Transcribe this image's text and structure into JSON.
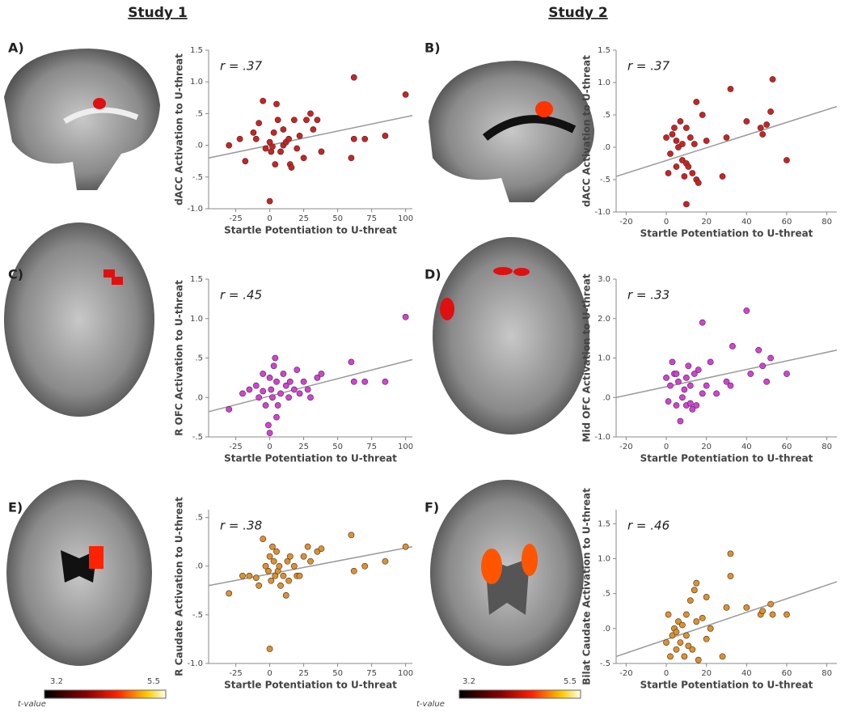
{
  "headers": [
    "Study 1",
    "Study 2"
  ],
  "colorbars": [
    {
      "min": 3.2,
      "max": 5.5,
      "label": "t-value"
    },
    {
      "min": 3.2,
      "max": 5.5,
      "label": "t-value"
    }
  ],
  "chart_data": [
    {
      "type": "scatter",
      "panel": "A)",
      "annotation": "r = .37",
      "xlabel": "Startle Potentiation to U-threat",
      "ylabel": "dACC Activation to U-threat",
      "color": "#cc2222",
      "xlim": [
        -45,
        105
      ],
      "xticks": [
        -25,
        0,
        25,
        50,
        75,
        100
      ],
      "ylim": [
        -1.0,
        1.5
      ],
      "yticks": [
        {
          "value": -1.0,
          "label": "-1.0"
        },
        {
          "value": -0.5,
          "label": "-.5"
        },
        {
          "value": 0,
          "label": ".0"
        },
        {
          "value": 0.5,
          "label": ".5"
        },
        {
          "value": 1.0,
          "label": "1.0"
        },
        {
          "value": 1.5,
          "label": "1.5"
        }
      ],
      "x": [
        -30,
        -22,
        -18,
        -12,
        -10,
        -5,
        -3,
        0,
        1,
        2,
        3,
        4,
        5,
        6,
        8,
        10,
        12,
        14,
        15,
        16,
        18,
        20,
        22,
        25,
        27,
        30,
        32,
        35,
        38,
        0,
        62,
        60,
        62,
        70,
        85,
        100,
        -8,
        10
      ],
      "values": [
        0.0,
        0.1,
        -0.25,
        0.2,
        0.1,
        0.7,
        -0.05,
        0.05,
        -0.1,
        -0.02,
        0.2,
        -0.3,
        0.65,
        0.4,
        -0.1,
        0.0,
        0.05,
        0.1,
        -0.3,
        -0.35,
        0.4,
        -0.05,
        0.15,
        -0.2,
        0.4,
        0.5,
        0.25,
        0.4,
        -0.1,
        -0.88,
        1.07,
        -0.2,
        0.1,
        0.1,
        0.15,
        0.8,
        0.35,
        0.25
      ],
      "trend_line": {
        "x": [
          -45,
          105
        ],
        "values": [
          -0.2,
          0.47
        ]
      }
    },
    {
      "type": "scatter",
      "panel": "B)",
      "annotation": "r = .37",
      "xlabel": "Startle Potentiation to U-threat",
      "ylabel": "dACC Activation to U-threat",
      "color": "#cc2222",
      "xlim": [
        -25,
        85
      ],
      "xticks": [
        -20,
        0,
        20,
        40,
        60,
        80
      ],
      "ylim": [
        -1.0,
        1.5
      ],
      "yticks": [
        {
          "value": -1.0,
          "label": "-1.0"
        },
        {
          "value": -0.5,
          "label": "-.5"
        },
        {
          "value": 0,
          "label": ".0"
        },
        {
          "value": 0.5,
          "label": ".5"
        },
        {
          "value": 1.0,
          "label": "1.0"
        },
        {
          "value": 1.5,
          "label": "1.5"
        }
      ],
      "x": [
        0,
        1,
        2,
        3,
        4,
        5,
        6,
        7,
        8,
        9,
        10,
        10,
        11,
        12,
        13,
        14,
        15,
        15,
        16,
        18,
        20,
        10,
        28,
        30,
        32,
        40,
        47,
        48,
        50,
        52,
        53,
        60,
        5,
        8
      ],
      "values": [
        0.15,
        -0.4,
        -0.1,
        0.2,
        0.3,
        -0.3,
        0.0,
        0.4,
        -0.2,
        -0.45,
        -0.25,
        0.3,
        -0.3,
        0.15,
        -0.4,
        0.05,
        -0.5,
        0.7,
        -0.55,
        0.5,
        0.1,
        -0.88,
        -0.45,
        0.15,
        0.9,
        0.4,
        0.3,
        0.2,
        0.35,
        0.55,
        1.05,
        -0.2,
        0.1,
        0.05
      ],
      "trend_line": {
        "x": [
          -25,
          85
        ],
        "values": [
          -0.45,
          0.63
        ]
      }
    },
    {
      "type": "scatter",
      "panel": "C)",
      "annotation": "r = .45",
      "xlabel": "Startle Potentiation to U-threat",
      "ylabel": "R OFC Activation to U-threat",
      "color": "#d63fd6",
      "xlim": [
        -45,
        105
      ],
      "xticks": [
        -25,
        0,
        25,
        50,
        75,
        100
      ],
      "ylim": [
        -0.5,
        1.5
      ],
      "yticks": [
        {
          "value": -0.5,
          "label": "-.5"
        },
        {
          "value": 0,
          "label": ".0"
        },
        {
          "value": 0.5,
          "label": ".5"
        },
        {
          "value": 1.0,
          "label": "1.0"
        },
        {
          "value": 1.5,
          "label": "1.5"
        }
      ],
      "x": [
        -30,
        -20,
        -15,
        -10,
        -8,
        -5,
        -3,
        -1,
        0,
        0,
        1,
        2,
        3,
        4,
        5,
        6,
        8,
        10,
        12,
        14,
        15,
        18,
        20,
        22,
        25,
        28,
        30,
        35,
        38,
        60,
        62,
        70,
        85,
        100,
        -5,
        5
      ],
      "values": [
        -0.15,
        0.05,
        0.1,
        0.15,
        0.0,
        0.3,
        -0.1,
        -0.35,
        -0.45,
        0.25,
        0.1,
        0.0,
        0.4,
        0.5,
        0.2,
        -0.1,
        0.05,
        0.3,
        0.15,
        0.0,
        0.2,
        0.1,
        0.35,
        0.05,
        0.2,
        0.1,
        0.0,
        0.25,
        0.3,
        0.45,
        0.2,
        0.2,
        0.2,
        1.02,
        0.08,
        -0.25
      ],
      "trend_line": {
        "x": [
          -45,
          105
        ],
        "values": [
          -0.18,
          0.48
        ]
      }
    },
    {
      "type": "scatter",
      "panel": "D)",
      "annotation": "r = .33",
      "xlabel": "Startle Potentiation to U-threat",
      "ylabel": "Mid OFC Activation to U-threat",
      "color": "#d63fd6",
      "xlim": [
        -25,
        85
      ],
      "xticks": [
        -20,
        0,
        20,
        40,
        60,
        80
      ],
      "ylim": [
        -1.0,
        3.0
      ],
      "yticks": [
        {
          "value": -1.0,
          "label": "-1.0"
        },
        {
          "value": 0,
          "label": ".0"
        },
        {
          "value": 1.0,
          "label": "1.0"
        },
        {
          "value": 2.0,
          "label": "2.0"
        },
        {
          "value": 3.0,
          "label": "3.0"
        }
      ],
      "x": [
        0,
        1,
        2,
        3,
        4,
        5,
        6,
        7,
        8,
        9,
        10,
        10,
        11,
        12,
        13,
        14,
        15,
        16,
        18,
        18,
        20,
        22,
        25,
        30,
        32,
        33,
        40,
        42,
        46,
        48,
        50,
        52,
        60,
        5,
        12
      ],
      "values": [
        0.5,
        -0.1,
        0.3,
        0.9,
        0.6,
        -0.2,
        0.4,
        -0.6,
        0.0,
        0.2,
        0.5,
        -0.2,
        0.8,
        0.3,
        -0.3,
        0.6,
        -0.2,
        0.7,
        0.1,
        1.9,
        0.3,
        0.9,
        0.1,
        0.4,
        0.3,
        1.3,
        2.2,
        0.6,
        1.2,
        0.8,
        0.4,
        1.0,
        0.6,
        0.6,
        -0.15
      ],
      "trend_line": {
        "x": [
          -25,
          85
        ],
        "values": [
          0.0,
          1.2
        ]
      }
    },
    {
      "type": "scatter",
      "panel": "E)",
      "annotation": "r = .38",
      "xlabel": "Startle Potentiation to U-threat",
      "ylabel": "R Caudate Activation to U-threat",
      "color": "#e0902a",
      "xlim": [
        -45,
        105
      ],
      "xticks": [
        -25,
        0,
        25,
        50,
        75,
        100
      ],
      "ylim": [
        -1.0,
        0.58
      ],
      "yticks": [
        {
          "value": -1.0,
          "label": "-1.0"
        },
        {
          "value": -0.5,
          "label": "-.5"
        },
        {
          "value": 0,
          "label": ".0"
        },
        {
          "value": 0.5,
          "label": ".5"
        }
      ],
      "x": [
        -30,
        -20,
        -15,
        -10,
        -5,
        -3,
        -1,
        0,
        0,
        1,
        2,
        3,
        4,
        5,
        6,
        7,
        8,
        10,
        12,
        13,
        14,
        15,
        18,
        20,
        22,
        25,
        28,
        30,
        35,
        38,
        60,
        62,
        70,
        85,
        100,
        -8
      ],
      "values": [
        -0.28,
        -0.1,
        -0.1,
        -0.12,
        0.28,
        0.0,
        -0.05,
        0.1,
        -0.85,
        -0.15,
        0.2,
        0.05,
        -0.1,
        0.15,
        -0.05,
        0.0,
        -0.2,
        -0.1,
        -0.3,
        0.05,
        -0.15,
        0.1,
        0.0,
        -0.1,
        -0.1,
        0.1,
        0.2,
        0.05,
        0.15,
        0.18,
        0.32,
        -0.05,
        0.0,
        0.05,
        0.2,
        -0.2
      ],
      "trend_line": {
        "x": [
          -45,
          105
        ],
        "values": [
          -0.2,
          0.2
        ]
      }
    },
    {
      "type": "scatter",
      "panel": "F)",
      "annotation": "r = .46",
      "xlabel": "Startle Potentiation to U-threat",
      "ylabel": "Bilat Caudate Activation to U-threat",
      "color": "#e0902a",
      "xlim": [
        -25,
        85
      ],
      "xticks": [
        -20,
        0,
        20,
        40,
        60,
        80
      ],
      "ylim": [
        -0.5,
        1.7
      ],
      "yticks": [
        {
          "value": -0.5,
          "label": "-.5"
        },
        {
          "value": 0,
          "label": ".0"
        },
        {
          "value": 0.5,
          "label": ".5"
        },
        {
          "value": 1.0,
          "label": "1.0"
        },
        {
          "value": 1.5,
          "label": "1.5"
        }
      ],
      "x": [
        0,
        1,
        2,
        3,
        4,
        5,
        6,
        7,
        8,
        9,
        10,
        10,
        11,
        12,
        13,
        14,
        15,
        15,
        16,
        18,
        20,
        20,
        22,
        28,
        30,
        32,
        32,
        40,
        47,
        48,
        52,
        53,
        60,
        5
      ],
      "values": [
        -0.2,
        0.2,
        -0.4,
        -0.1,
        0.0,
        -0.3,
        0.1,
        -0.2,
        0.05,
        -0.4,
        0.2,
        -0.1,
        -0.25,
        0.4,
        -0.3,
        0.55,
        0.1,
        0.65,
        -0.45,
        0.15,
        0.45,
        -0.15,
        0.0,
        -0.4,
        0.3,
        1.07,
        0.75,
        0.3,
        0.2,
        0.25,
        0.35,
        0.2,
        0.2,
        -0.05
      ],
      "trend_line": {
        "x": [
          -25,
          85
        ],
        "values": [
          -0.4,
          0.67
        ]
      }
    }
  ]
}
